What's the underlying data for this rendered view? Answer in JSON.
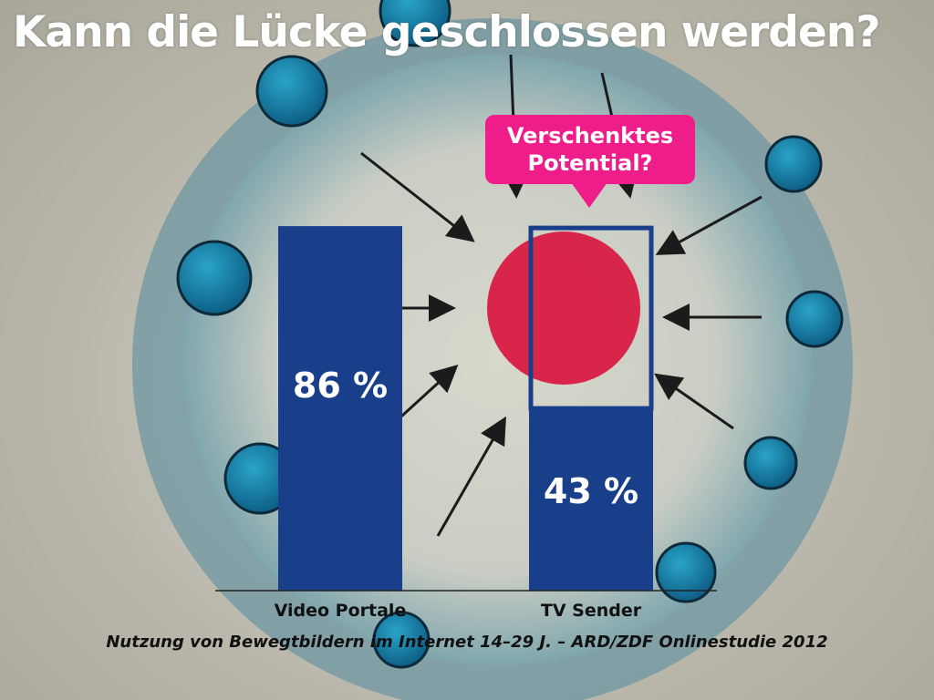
{
  "title": "Kann die Lücke geschlossen werden?",
  "callout": {
    "line1": "Verschenktes",
    "line2": "Potential?"
  },
  "source": "Nutzung von Bewegtbildern im Internet 14–29 J.  – ARD/ZDF Onlinestudie 2012",
  "colors": {
    "bar": "#1a3f8a",
    "potential_outline": "#1a3f8a",
    "callout": "#ee1d8a",
    "baseline": "#222222",
    "bar_label": "#ffffff",
    "target_dot": "#d9163f"
  },
  "chart_data": {
    "type": "bar",
    "title": "",
    "xlabel": "",
    "ylabel": "",
    "ylim": [
      0,
      100
    ],
    "categories": [
      "Video Portale",
      "TV Sender"
    ],
    "values": [
      86,
      43
    ],
    "value_labels": [
      "86 %",
      "43 %"
    ],
    "annotation": "Verschenktes Potential?",
    "grid": false,
    "legend": "none"
  }
}
